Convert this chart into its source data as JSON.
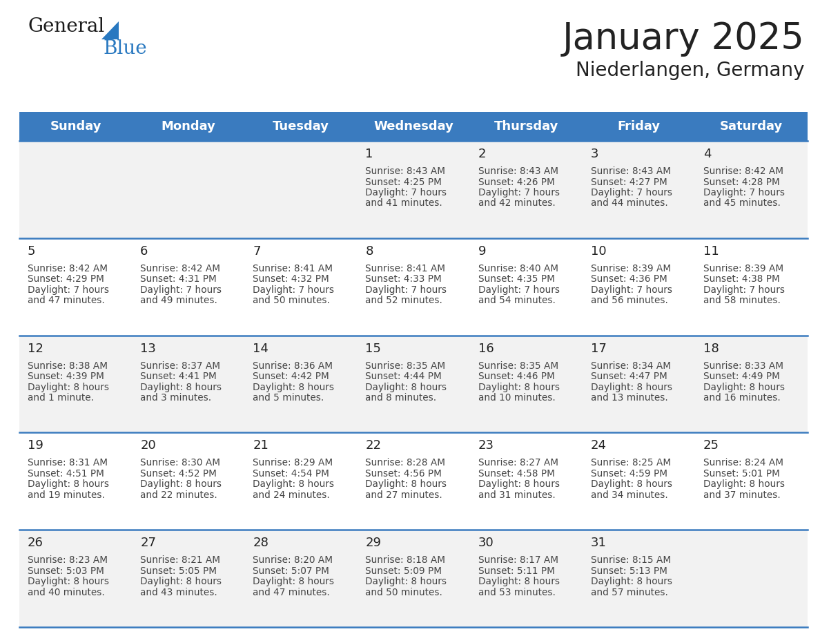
{
  "title": "January 2025",
  "subtitle": "Niederlangen, Germany",
  "header_color": "#3a7bbf",
  "header_text_color": "#ffffff",
  "days_of_week": [
    "Sunday",
    "Monday",
    "Tuesday",
    "Wednesday",
    "Thursday",
    "Friday",
    "Saturday"
  ],
  "weeks": [
    [
      {
        "day": "",
        "sunrise": "",
        "sunset": "",
        "daylight": ""
      },
      {
        "day": "",
        "sunrise": "",
        "sunset": "",
        "daylight": ""
      },
      {
        "day": "",
        "sunrise": "",
        "sunset": "",
        "daylight": ""
      },
      {
        "day": "1",
        "sunrise": "8:43 AM",
        "sunset": "4:25 PM",
        "daylight": "7 hours and 41 minutes."
      },
      {
        "day": "2",
        "sunrise": "8:43 AM",
        "sunset": "4:26 PM",
        "daylight": "7 hours and 42 minutes."
      },
      {
        "day": "3",
        "sunrise": "8:43 AM",
        "sunset": "4:27 PM",
        "daylight": "7 hours and 44 minutes."
      },
      {
        "day": "4",
        "sunrise": "8:42 AM",
        "sunset": "4:28 PM",
        "daylight": "7 hours and 45 minutes."
      }
    ],
    [
      {
        "day": "5",
        "sunrise": "8:42 AM",
        "sunset": "4:29 PM",
        "daylight": "7 hours and 47 minutes."
      },
      {
        "day": "6",
        "sunrise": "8:42 AM",
        "sunset": "4:31 PM",
        "daylight": "7 hours and 49 minutes."
      },
      {
        "day": "7",
        "sunrise": "8:41 AM",
        "sunset": "4:32 PM",
        "daylight": "7 hours and 50 minutes."
      },
      {
        "day": "8",
        "sunrise": "8:41 AM",
        "sunset": "4:33 PM",
        "daylight": "7 hours and 52 minutes."
      },
      {
        "day": "9",
        "sunrise": "8:40 AM",
        "sunset": "4:35 PM",
        "daylight": "7 hours and 54 minutes."
      },
      {
        "day": "10",
        "sunrise": "8:39 AM",
        "sunset": "4:36 PM",
        "daylight": "7 hours and 56 minutes."
      },
      {
        "day": "11",
        "sunrise": "8:39 AM",
        "sunset": "4:38 PM",
        "daylight": "7 hours and 58 minutes."
      }
    ],
    [
      {
        "day": "12",
        "sunrise": "8:38 AM",
        "sunset": "4:39 PM",
        "daylight": "8 hours and 1 minute."
      },
      {
        "day": "13",
        "sunrise": "8:37 AM",
        "sunset": "4:41 PM",
        "daylight": "8 hours and 3 minutes."
      },
      {
        "day": "14",
        "sunrise": "8:36 AM",
        "sunset": "4:42 PM",
        "daylight": "8 hours and 5 minutes."
      },
      {
        "day": "15",
        "sunrise": "8:35 AM",
        "sunset": "4:44 PM",
        "daylight": "8 hours and 8 minutes."
      },
      {
        "day": "16",
        "sunrise": "8:35 AM",
        "sunset": "4:46 PM",
        "daylight": "8 hours and 10 minutes."
      },
      {
        "day": "17",
        "sunrise": "8:34 AM",
        "sunset": "4:47 PM",
        "daylight": "8 hours and 13 minutes."
      },
      {
        "day": "18",
        "sunrise": "8:33 AM",
        "sunset": "4:49 PM",
        "daylight": "8 hours and 16 minutes."
      }
    ],
    [
      {
        "day": "19",
        "sunrise": "8:31 AM",
        "sunset": "4:51 PM",
        "daylight": "8 hours and 19 minutes."
      },
      {
        "day": "20",
        "sunrise": "8:30 AM",
        "sunset": "4:52 PM",
        "daylight": "8 hours and 22 minutes."
      },
      {
        "day": "21",
        "sunrise": "8:29 AM",
        "sunset": "4:54 PM",
        "daylight": "8 hours and 24 minutes."
      },
      {
        "day": "22",
        "sunrise": "8:28 AM",
        "sunset": "4:56 PM",
        "daylight": "8 hours and 27 minutes."
      },
      {
        "day": "23",
        "sunrise": "8:27 AM",
        "sunset": "4:58 PM",
        "daylight": "8 hours and 31 minutes."
      },
      {
        "day": "24",
        "sunrise": "8:25 AM",
        "sunset": "4:59 PM",
        "daylight": "8 hours and 34 minutes."
      },
      {
        "day": "25",
        "sunrise": "8:24 AM",
        "sunset": "5:01 PM",
        "daylight": "8 hours and 37 minutes."
      }
    ],
    [
      {
        "day": "26",
        "sunrise": "8:23 AM",
        "sunset": "5:03 PM",
        "daylight": "8 hours and 40 minutes."
      },
      {
        "day": "27",
        "sunrise": "8:21 AM",
        "sunset": "5:05 PM",
        "daylight": "8 hours and 43 minutes."
      },
      {
        "day": "28",
        "sunrise": "8:20 AM",
        "sunset": "5:07 PM",
        "daylight": "8 hours and 47 minutes."
      },
      {
        "day": "29",
        "sunrise": "8:18 AM",
        "sunset": "5:09 PM",
        "daylight": "8 hours and 50 minutes."
      },
      {
        "day": "30",
        "sunrise": "8:17 AM",
        "sunset": "5:11 PM",
        "daylight": "8 hours and 53 minutes."
      },
      {
        "day": "31",
        "sunrise": "8:15 AM",
        "sunset": "5:13 PM",
        "daylight": "8 hours and 57 minutes."
      },
      {
        "day": "",
        "sunrise": "",
        "sunset": "",
        "daylight": ""
      }
    ]
  ],
  "bg_color": "#ffffff",
  "cell_bg_odd": "#f2f2f2",
  "cell_bg_even": "#ffffff",
  "border_color": "#3a7bbf",
  "text_color_dark": "#222222",
  "text_color_info": "#444444",
  "logo_general_color": "#1a1a1a",
  "logo_blue_color": "#2878c0",
  "logo_triangle_color": "#2878c0"
}
